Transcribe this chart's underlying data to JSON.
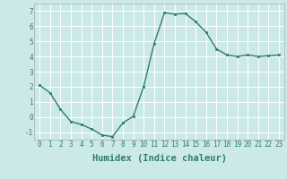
{
  "x": [
    0,
    1,
    2,
    3,
    4,
    5,
    6,
    7,
    8,
    9,
    10,
    11,
    12,
    13,
    14,
    15,
    16,
    17,
    18,
    19,
    20,
    21,
    22,
    23
  ],
  "y": [
    2.1,
    1.6,
    0.5,
    -0.3,
    -0.5,
    -0.8,
    -1.2,
    -1.3,
    -0.4,
    0.05,
    2.0,
    4.85,
    6.9,
    6.8,
    6.85,
    6.3,
    5.6,
    4.5,
    4.1,
    4.0,
    4.1,
    4.0,
    4.05,
    4.1
  ],
  "line_color": "#2e7d6e",
  "marker": "s",
  "markersize": 2.0,
  "linewidth": 1.0,
  "xlabel": "Humidex (Indice chaleur)",
  "xlim": [
    -0.5,
    23.5
  ],
  "ylim": [
    -1.5,
    7.5
  ],
  "xticks": [
    0,
    1,
    2,
    3,
    4,
    5,
    6,
    7,
    8,
    9,
    10,
    11,
    12,
    13,
    14,
    15,
    16,
    17,
    18,
    19,
    20,
    21,
    22,
    23
  ],
  "yticks": [
    -1,
    0,
    1,
    2,
    3,
    4,
    5,
    6,
    7
  ],
  "bg_color": "#cce9e9",
  "grid_color": "#ffffff",
  "tick_label_fontsize": 5.5,
  "xlabel_fontsize": 7.5
}
